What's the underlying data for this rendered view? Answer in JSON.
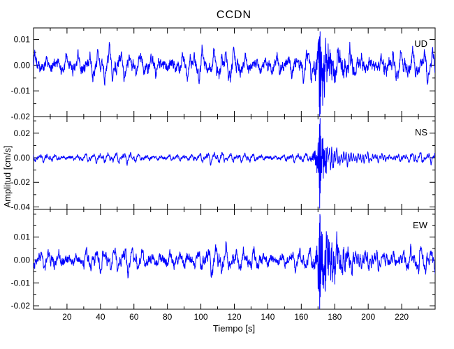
{
  "title": "CCDN",
  "colors": {
    "trace": "#0000ff",
    "axis": "#000000",
    "background": "#ffffff"
  },
  "chart_data": {
    "type": "line",
    "title": "CCDN",
    "xlabel": "Tiempo [s]",
    "ylabel": "Amplitud [cm/s]",
    "xlim": [
      0,
      240
    ],
    "xticks": [
      20,
      40,
      60,
      80,
      100,
      120,
      140,
      160,
      180,
      200,
      220
    ],
    "xtick_minor_step": 10,
    "grid": false,
    "legend_position": "top-right-inside-each-panel",
    "line_color": "#0000ff",
    "sample_interval_s": 0.12,
    "event_time_s": 170,
    "panels": [
      {
        "label": "UD",
        "ylim": [
          -0.02,
          0.0145
        ],
        "yticks": [
          0.01,
          0.0,
          -0.01,
          -0.02
        ],
        "ytick_minor_step": 0.005,
        "noise_amp": 0.0036,
        "noise_freqs": [
          0.16,
          0.27,
          0.42,
          0.85
        ],
        "event": {
          "time_s": 170,
          "peak_pos": 0.013,
          "peak_neg": -0.027,
          "freq_hz": 2.0,
          "decay_s": 8,
          "coda_s": 30
        },
        "seed": 7
      },
      {
        "label": "NS",
        "ylim": [
          -0.042,
          0.0335
        ],
        "yticks": [
          0.02,
          0.0,
          -0.02,
          -0.04
        ],
        "ytick_minor_step": 0.01,
        "noise_amp": 0.0024,
        "noise_freqs": [
          0.22,
          0.38,
          0.6,
          1.1
        ],
        "event": {
          "time_s": 170,
          "peak_pos": 0.032,
          "peak_neg": -0.041,
          "freq_hz": 2.3,
          "decay_s": 4,
          "coda_s": 25
        },
        "seed": 21
      },
      {
        "label": "EW",
        "ylim": [
          -0.0215,
          0.0221
        ],
        "yticks": [
          0.01,
          0.0,
          -0.01,
          -0.02
        ],
        "ytick_minor_step": 0.005,
        "noise_amp": 0.0033,
        "noise_freqs": [
          0.18,
          0.3,
          0.5,
          0.95
        ],
        "event": {
          "time_s": 170,
          "peak_pos": 0.019,
          "peak_neg": -0.023,
          "freq_hz": 2.1,
          "decay_s": 8,
          "coda_s": 32
        },
        "seed": 33
      }
    ]
  }
}
